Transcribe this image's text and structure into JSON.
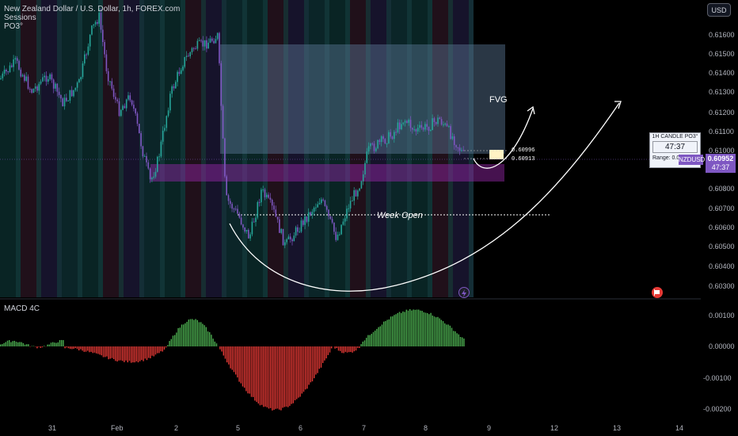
{
  "legend": {
    "title": "New Zealand Dollar / U.S. Dollar, 1h, FOREX.com",
    "sessions": "Sessions",
    "po3": "PO3°"
  },
  "currency_button": "USD",
  "price_axis": [
    "0.61600",
    "0.61500",
    "0.61400",
    "0.61300",
    "0.61200",
    "0.61100",
    "0.61000",
    "0.60800",
    "0.60700",
    "0.60600",
    "0.60500",
    "0.60400",
    "0.60300"
  ],
  "macd_axis": [
    "0.00100",
    "0.00000",
    "-0.00100",
    "-0.00200"
  ],
  "time_axis": [
    "31",
    "Feb",
    "2",
    "5",
    "6",
    "7",
    "8",
    "9",
    "12",
    "13",
    "14"
  ],
  "annotations": {
    "fvg": "FVG",
    "week_open": "Week Open",
    "level_high": "0.60996",
    "level_low": "0.60913"
  },
  "po3_widget": {
    "title": "1H CANDLE PO3°",
    "countdown": "47:37",
    "range": "Range: 0.00"
  },
  "symbol_tag": "NZDUSD",
  "last_price": "0.60952",
  "last_price_timer": "47:37",
  "macd_title": "MACD 4C",
  "colors": {
    "bull": "#26a69a",
    "bear": "#7e57c2",
    "macd_up": "#4caf50",
    "macd_down": "#e53935",
    "accent": "#7e57c2"
  },
  "icons": [
    "lightning-icon",
    "flag-icon"
  ]
}
